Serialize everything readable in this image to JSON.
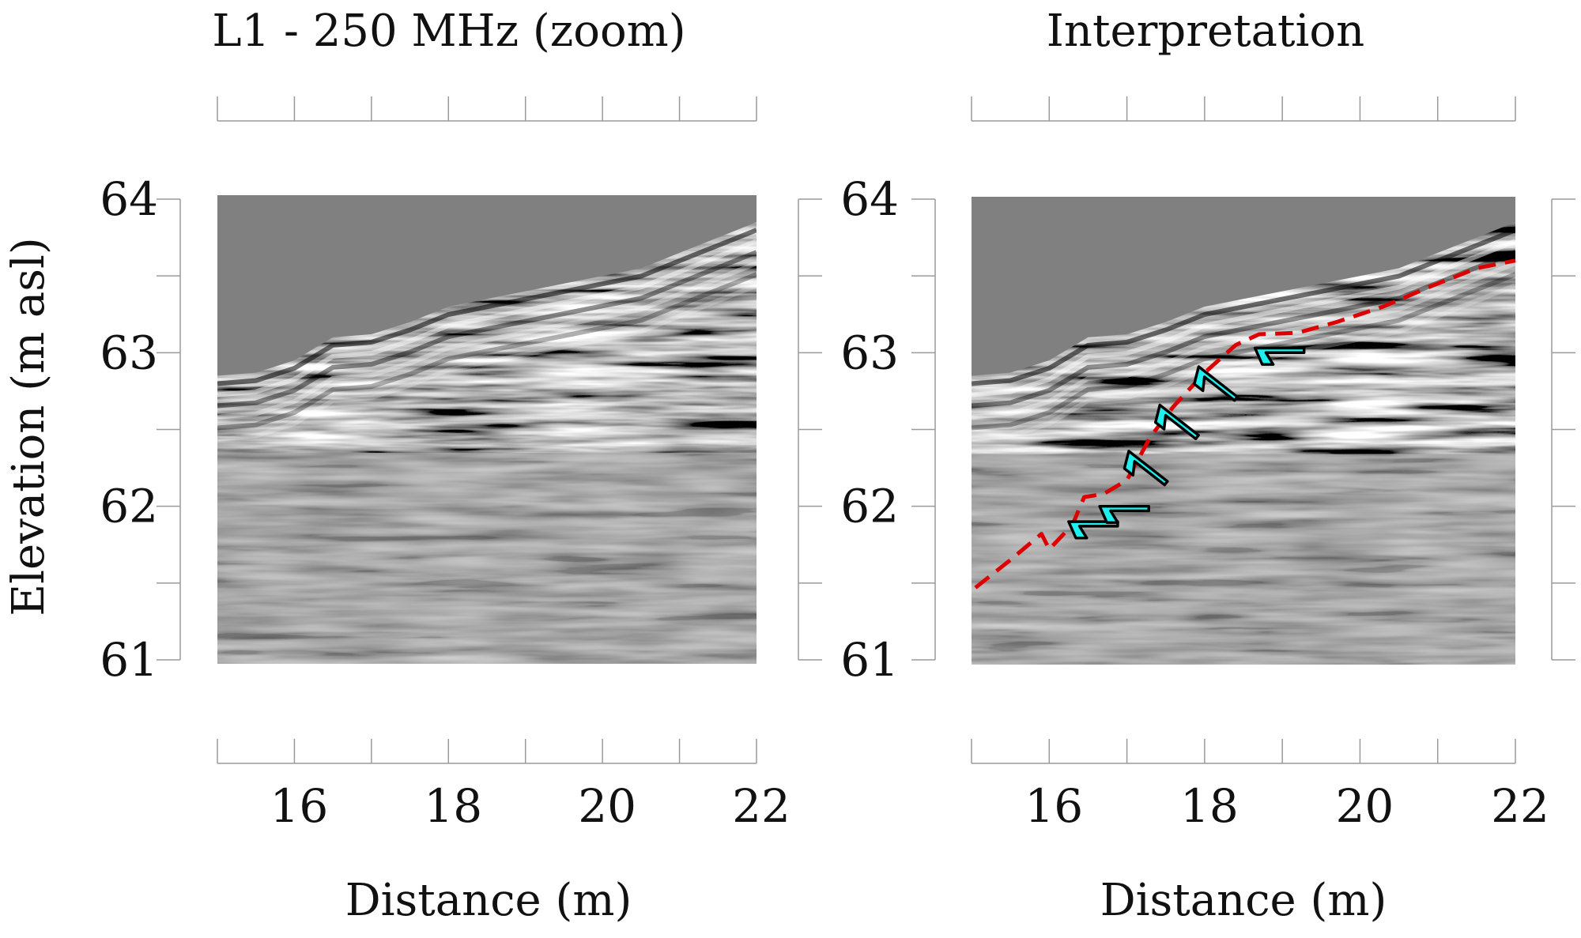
{
  "figure": {
    "y_axis_label": "Elevation (m asl)",
    "colors": {
      "background": "#ffffff",
      "radargram_fill": "#808080",
      "interpretation_line": "#dd0000",
      "arrow_fill": "#1ff0ee",
      "frame": "#9a9a9a"
    }
  },
  "chart_data": [
    {
      "type": "heatmap",
      "title": "L1 - 250 MHz (zoom)",
      "xlabel": "Distance (m)",
      "ylabel": "Elevation (m asl)",
      "xlim": [
        15,
        22
      ],
      "ylim": [
        61,
        64
      ],
      "x_ticks": [
        16,
        18,
        20,
        22
      ],
      "y_ticks": [
        61,
        62,
        63,
        64
      ],
      "x_tick_labels": [
        "16",
        "18",
        "20",
        "22"
      ],
      "y_tick_labels": [
        "61",
        "62",
        "63",
        "64"
      ],
      "grid": false,
      "content": "GPR radargram, grayscale",
      "ground_surface": {
        "x": [
          15,
          15.5,
          16,
          16.5,
          17,
          17.5,
          18,
          18.5,
          19,
          19.5,
          20,
          20.5,
          21,
          21.5,
          22
        ],
        "y": [
          62.85,
          62.87,
          62.95,
          63.1,
          63.12,
          63.2,
          63.3,
          63.35,
          63.4,
          63.45,
          63.5,
          63.55,
          63.65,
          63.75,
          63.85
        ]
      }
    },
    {
      "type": "heatmap",
      "title": "Interpretation",
      "xlabel": "Distance (m)",
      "ylabel": "",
      "xlim": [
        15,
        22
      ],
      "ylim": [
        61,
        64
      ],
      "x_ticks": [
        16,
        18,
        20,
        22
      ],
      "y_ticks": [
        61,
        62,
        63,
        64
      ],
      "x_tick_labels": [
        "16",
        "18",
        "20",
        "22"
      ],
      "y_tick_labels": [
        "61",
        "62",
        "63",
        "64"
      ],
      "grid": false,
      "content": "GPR radargram, grayscale, with interpretation overlay",
      "ground_surface": {
        "x": [
          15,
          15.5,
          16,
          16.5,
          17,
          17.5,
          18,
          18.5,
          19,
          19.5,
          20,
          20.5,
          21,
          21.5,
          22
        ],
        "y": [
          62.85,
          62.87,
          62.95,
          63.1,
          63.12,
          63.2,
          63.3,
          63.35,
          63.4,
          63.45,
          63.5,
          63.55,
          63.65,
          63.75,
          63.85
        ]
      },
      "interpretation_line": {
        "style": "dashed",
        "x": [
          15.05,
          15.5,
          15.9,
          16.0,
          16.3,
          16.45,
          16.7,
          17.0,
          17.3,
          17.6,
          18.0,
          18.4,
          18.7,
          19.2,
          19.7,
          20.3,
          20.9,
          21.5,
          22.0
        ],
        "y": [
          61.47,
          61.65,
          61.82,
          61.72,
          61.88,
          62.06,
          62.08,
          62.17,
          62.45,
          62.65,
          62.87,
          63.05,
          63.12,
          63.13,
          63.2,
          63.3,
          63.43,
          63.55,
          63.6
        ]
      },
      "arrows": [
        {
          "x": 16.6,
          "y": 61.9,
          "direction": "left"
        },
        {
          "x": 17.0,
          "y": 62.0,
          "direction": "left"
        },
        {
          "x": 17.3,
          "y": 62.25,
          "direction": "up-left"
        },
        {
          "x": 17.7,
          "y": 62.55,
          "direction": "up-left"
        },
        {
          "x": 18.2,
          "y": 62.8,
          "direction": "up-left"
        },
        {
          "x": 19.0,
          "y": 63.03,
          "direction": "left"
        }
      ]
    }
  ]
}
